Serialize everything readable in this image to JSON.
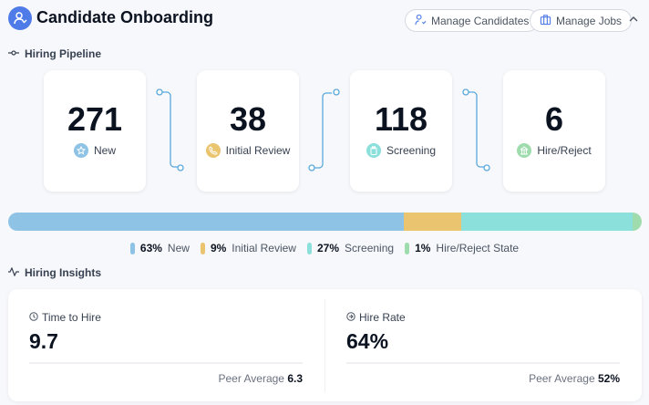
{
  "header": {
    "title": "Candidate Onboarding",
    "manage_candidates": "Manage Candidates",
    "manage_jobs": "Manage Jobs"
  },
  "pipeline": {
    "title": "Hiring Pipeline",
    "stages": [
      {
        "count": "271",
        "label": "New",
        "color": "#8ec3e6"
      },
      {
        "count": "38",
        "label": "Initial Review",
        "color": "#eac46f"
      },
      {
        "count": "118",
        "label": "Screening",
        "color": "#8ce0dc"
      },
      {
        "count": "6",
        "label": "Hire/Reject",
        "color": "#9edcae"
      }
    ]
  },
  "distribution": {
    "segments": [
      {
        "pct": "63%",
        "label": "New",
        "value": 62.5,
        "color": "#8ec3e6"
      },
      {
        "pct": "9%",
        "label": "Initial Review",
        "value": 9,
        "color": "#eac46f"
      },
      {
        "pct": "27%",
        "label": "Screening",
        "value": 27,
        "color": "#8ce0dc"
      },
      {
        "pct": "1%",
        "label": "Hire/Reject State",
        "value": 1.5,
        "color": "#9edcae"
      }
    ]
  },
  "insights": {
    "title": "Hiring Insights",
    "time_to_hire": {
      "label": "Time to Hire",
      "value": "9.7",
      "peer_label": "Peer Average",
      "peer_value": "6.3"
    },
    "hire_rate": {
      "label": "Hire Rate",
      "value": "64%",
      "peer_label": "Peer Average",
      "peer_value": "52%"
    }
  }
}
